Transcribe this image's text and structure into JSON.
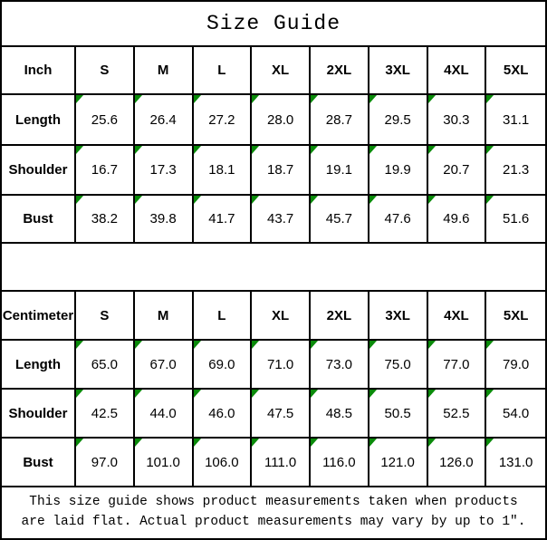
{
  "title": "Size Guide",
  "colors": {
    "background": "#ffffff",
    "border": "#000000",
    "text": "#000000",
    "corner_triangle_green": "#0a8a0a"
  },
  "sizes": [
    "S",
    "M",
    "L",
    "XL",
    "2XL",
    "3XL",
    "4XL",
    "5XL"
  ],
  "inch_table": {
    "unit_label": "Inch",
    "rows": [
      {
        "label": "Length",
        "values": [
          "25.6",
          "26.4",
          "27.2",
          "28.0",
          "28.7",
          "29.5",
          "30.3",
          "31.1"
        ]
      },
      {
        "label": "Shoulder",
        "values": [
          "16.7",
          "17.3",
          "18.1",
          "18.7",
          "19.1",
          "19.9",
          "20.7",
          "21.3"
        ]
      },
      {
        "label": "Bust",
        "values": [
          "38.2",
          "39.8",
          "41.7",
          "43.7",
          "45.7",
          "47.6",
          "49.6",
          "51.6"
        ]
      }
    ]
  },
  "cm_table": {
    "unit_label": "Centimeter",
    "rows": [
      {
        "label": "Length",
        "values": [
          "65.0",
          "67.0",
          "69.0",
          "71.0",
          "73.0",
          "75.0",
          "77.0",
          "79.0"
        ]
      },
      {
        "label": "Shoulder",
        "values": [
          "42.5",
          "44.0",
          "46.0",
          "47.5",
          "48.5",
          "50.5",
          "52.5",
          "54.0"
        ]
      },
      {
        "label": "Bust",
        "values": [
          "97.0",
          "101.0",
          "106.0",
          "111.0",
          "116.0",
          "121.0",
          "126.0",
          "131.0"
        ]
      }
    ]
  },
  "footnote": {
    "line1": "This size guide shows product measurements taken when products",
    "line2": "are laid flat. Actual product measurements may vary by up to 1″."
  },
  "chart_data": [
    {
      "type": "table",
      "title": "Size Guide (Inch)",
      "columns": [
        "Inch",
        "S",
        "M",
        "L",
        "XL",
        "2XL",
        "3XL",
        "4XL",
        "5XL"
      ],
      "rows": [
        [
          "Length",
          25.6,
          26.4,
          27.2,
          28.0,
          28.7,
          29.5,
          30.3,
          31.1
        ],
        [
          "Shoulder",
          16.7,
          17.3,
          18.1,
          18.7,
          19.1,
          19.9,
          20.7,
          21.3
        ],
        [
          "Bust",
          38.2,
          39.8,
          41.7,
          43.7,
          45.7,
          47.6,
          49.6,
          51.6
        ]
      ]
    },
    {
      "type": "table",
      "title": "Size Guide (Centimeter)",
      "columns": [
        "Centimeter",
        "S",
        "M",
        "L",
        "XL",
        "2XL",
        "3XL",
        "4XL",
        "5XL"
      ],
      "rows": [
        [
          "Length",
          65.0,
          67.0,
          69.0,
          71.0,
          73.0,
          75.0,
          77.0,
          79.0
        ],
        [
          "Shoulder",
          42.5,
          44.0,
          46.0,
          47.5,
          48.5,
          50.5,
          52.5,
          54.0
        ],
        [
          "Bust",
          97.0,
          101.0,
          106.0,
          111.0,
          116.0,
          121.0,
          126.0,
          131.0
        ]
      ]
    }
  ]
}
